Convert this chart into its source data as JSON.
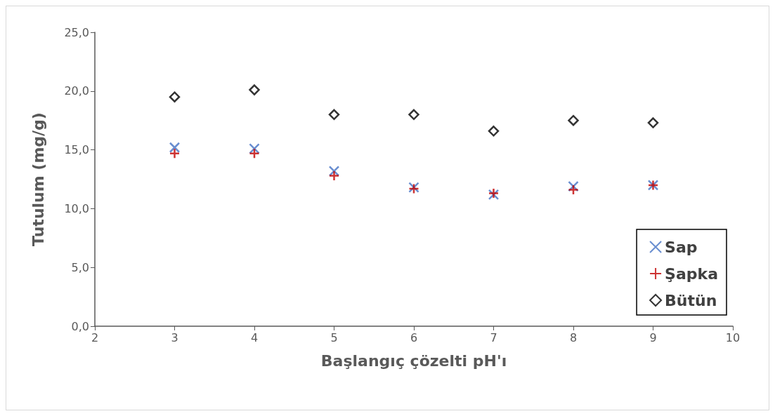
{
  "chart_data": {
    "type": "scatter",
    "xlabel": "Başlangıç çözelti pH'ı",
    "ylabel": "Tutulum (mg/g)",
    "x": [
      3,
      4,
      5,
      6,
      7,
      8,
      9
    ],
    "series": [
      {
        "name": "Sap",
        "color": "#4472c4",
        "marker": "x",
        "values": [
          15.2,
          15.1,
          13.2,
          11.8,
          11.2,
          11.9,
          12.0
        ]
      },
      {
        "name": "Şapka",
        "color": "#c00000",
        "marker": "cross",
        "values": [
          14.7,
          14.7,
          12.8,
          11.7,
          11.3,
          11.6,
          12.0
        ]
      },
      {
        "name": "Bütün",
        "color": "#000000",
        "marker": "diamond",
        "values": [
          19.5,
          20.1,
          18.0,
          18.0,
          16.6,
          17.5,
          17.3
        ]
      }
    ],
    "xlim": [
      2,
      10
    ],
    "xticks": [
      2,
      3,
      4,
      5,
      6,
      7,
      8,
      9,
      10
    ],
    "ylim": [
      0,
      25
    ],
    "yticks": [
      {
        "value": 0,
        "label": "0,0"
      },
      {
        "value": 5,
        "label": "5,0"
      },
      {
        "value": 10,
        "label": "10,0"
      },
      {
        "value": 15,
        "label": "15,0"
      },
      {
        "value": 20,
        "label": "20,0"
      },
      {
        "value": 25,
        "label": "25,0"
      }
    ],
    "grid": false,
    "legend": "bottom right"
  }
}
